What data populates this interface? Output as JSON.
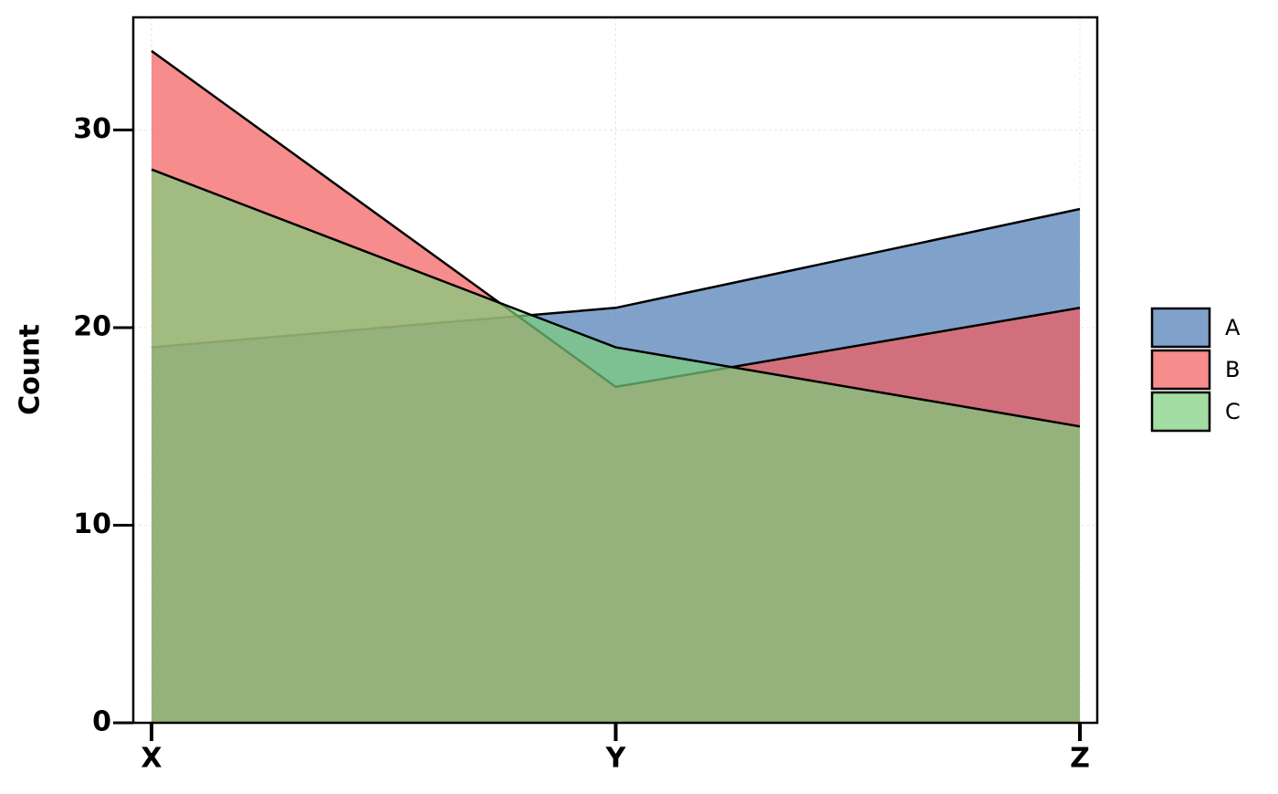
{
  "chart_data": {
    "type": "area",
    "y_label": "Count",
    "categories": [
      "X",
      "Y",
      "Z"
    ],
    "series": [
      {
        "name": "A",
        "color": "#4a7ab3",
        "values": [
          19,
          21,
          26
        ]
      },
      {
        "name": "B",
        "color": "#f35b5b",
        "values": [
          34,
          17,
          21
        ]
      },
      {
        "name": "C",
        "color": "#7ccf7c",
        "values": [
          28,
          19,
          15
        ]
      }
    ],
    "ylim": [
      0,
      35.7
    ],
    "yticks": [
      0,
      10,
      20,
      30
    ],
    "grid": true,
    "legend": "right"
  }
}
